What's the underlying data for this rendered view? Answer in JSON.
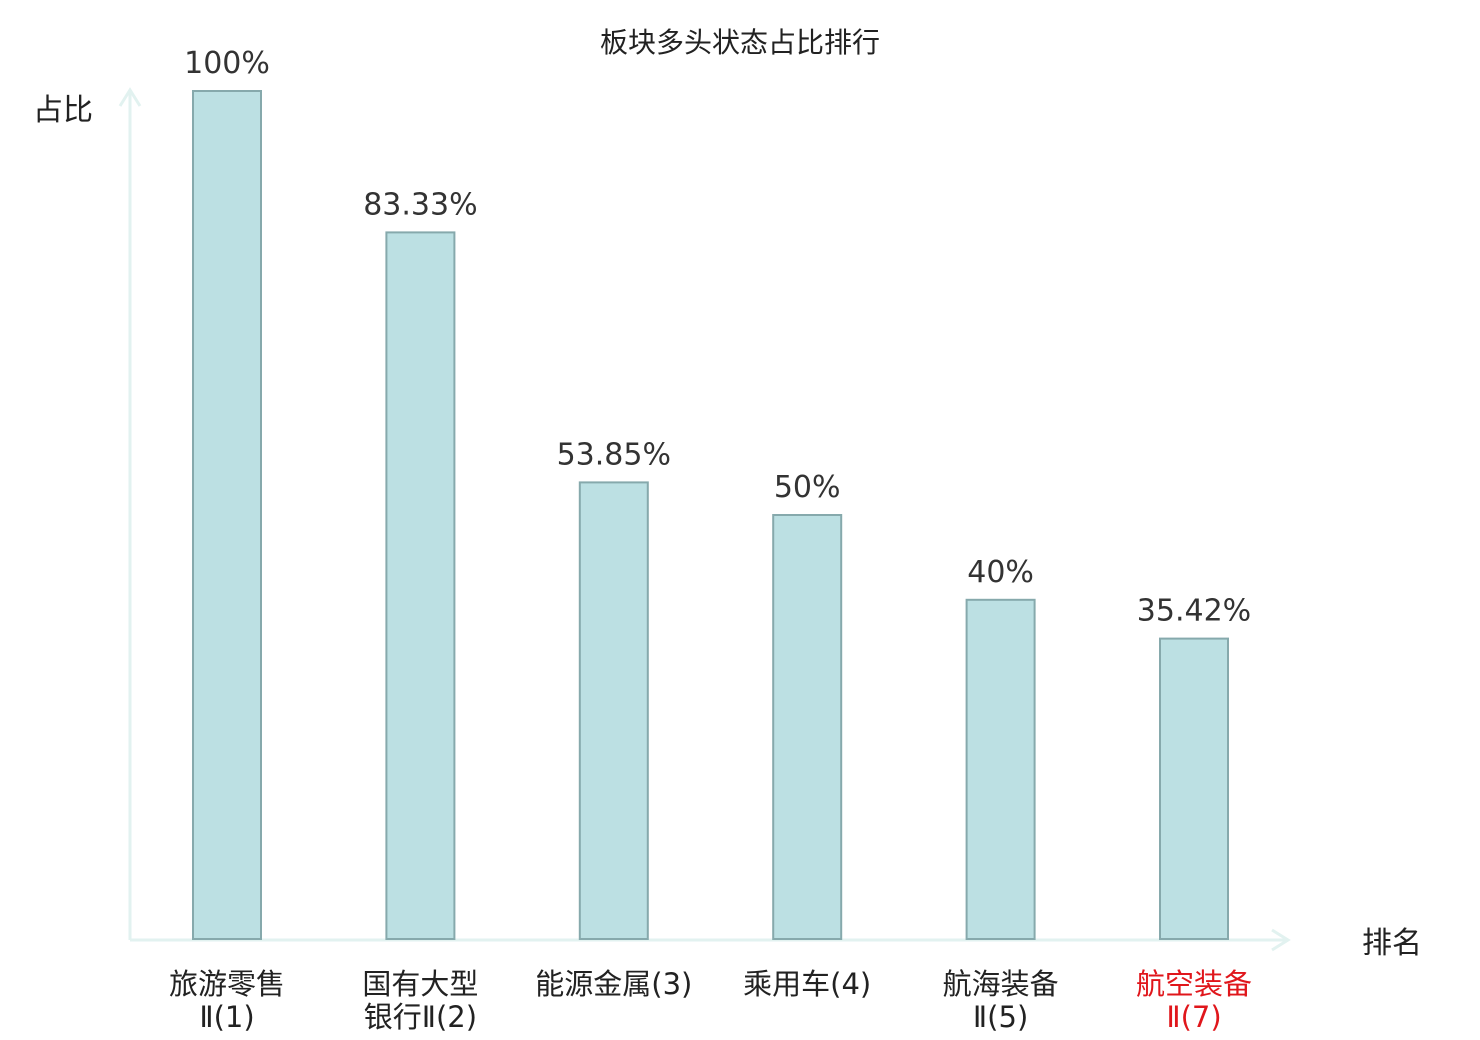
{
  "chart_data": {
    "type": "bar",
    "title": "板块多头状态占比排行",
    "ylabel": "占比",
    "xlabel": "排名",
    "ylim": [
      0,
      100
    ],
    "grid": false,
    "categories": [
      [
        "旅游零售",
        "Ⅱ(1)"
      ],
      [
        "国有大型",
        "银行Ⅱ(2)"
      ],
      [
        "能源金属(3)"
      ],
      [
        "乘用车(4)"
      ],
      [
        "航海装备",
        "Ⅱ(5)"
      ],
      [
        "航空装备",
        "Ⅱ(7)"
      ]
    ],
    "values": [
      100,
      83.33,
      53.85,
      50,
      40,
      35.42
    ],
    "value_labels": [
      "100%",
      "83.33%",
      "53.85%",
      "50%",
      "40%",
      "35.42%"
    ],
    "highlight_index": 5,
    "colors": {
      "bar_fill": "#bce0e3",
      "bar_stroke": "#86a9ac",
      "axis": "#e2f2f0",
      "highlight_text": "#e0161b"
    }
  }
}
